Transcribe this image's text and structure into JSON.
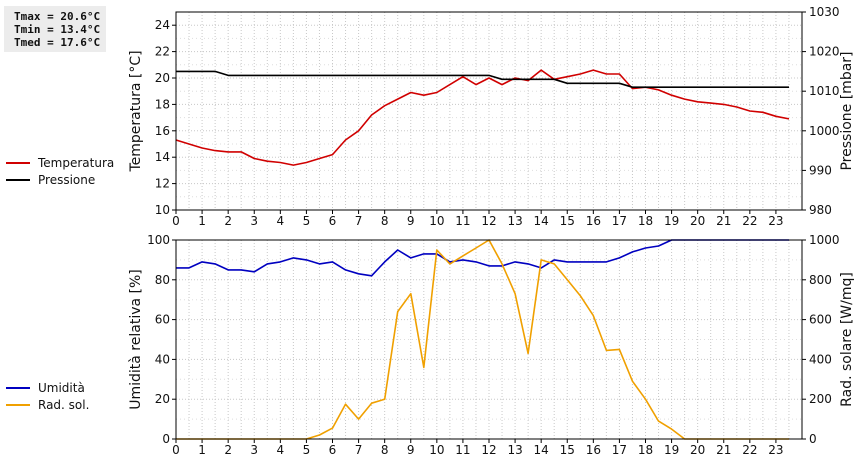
{
  "stats": {
    "tmax": "Tmax = 20.6°C",
    "tmin": "Tmin = 13.4°C",
    "tmed": "Tmed = 17.6°C"
  },
  "chart_data": [
    {
      "type": "line",
      "x_ticks": [
        0,
        1,
        2,
        3,
        4,
        5,
        6,
        7,
        8,
        9,
        10,
        11,
        12,
        13,
        14,
        15,
        16,
        17,
        18,
        19,
        20,
        21,
        22,
        23
      ],
      "xlim": [
        0,
        24
      ],
      "ylabel_left": "Temperatura [°C]",
      "ylim_left": [
        10,
        25
      ],
      "yticks_left": [
        10,
        12,
        14,
        16,
        18,
        20,
        22,
        24
      ],
      "ylabel_right": "Pressione [mbar]",
      "ylim_right": [
        980,
        1030
      ],
      "yticks_right": [
        980,
        990,
        1000,
        1010,
        1020,
        1030
      ],
      "grid": true,
      "legend_position": "left",
      "series": [
        {
          "name": "Temperatura",
          "axis": "left",
          "color": "#d00000",
          "x": [
            0,
            0.5,
            1,
            1.5,
            2,
            2.5,
            3,
            3.5,
            4,
            4.5,
            5,
            5.5,
            6,
            6.5,
            7,
            7.5,
            8,
            8.5,
            9,
            9.5,
            10,
            10.5,
            11,
            11.5,
            12,
            12.5,
            13,
            13.5,
            14,
            14.5,
            15,
            15.5,
            16,
            16.5,
            17,
            17.5,
            18,
            18.5,
            19,
            19.5,
            20,
            20.5,
            21,
            21.5,
            22,
            22.5,
            23,
            23.5
          ],
          "y": [
            15.3,
            15.0,
            14.7,
            14.5,
            14.4,
            14.4,
            13.9,
            13.7,
            13.6,
            13.4,
            13.6,
            13.9,
            14.2,
            15.3,
            16.0,
            17.2,
            17.9,
            18.4,
            18.9,
            18.7,
            18.9,
            19.5,
            20.1,
            19.5,
            20.0,
            19.5,
            20.0,
            19.8,
            20.6,
            19.9,
            20.1,
            20.3,
            20.6,
            20.3,
            20.3,
            19.2,
            19.3,
            19.1,
            18.7,
            18.4,
            18.2,
            18.1,
            18.0,
            17.8,
            17.5,
            17.4,
            17.1,
            16.9
          ]
        },
        {
          "name": "Pressione",
          "axis": "right",
          "color": "#000000",
          "x": [
            0,
            1.5,
            2,
            12,
            12.5,
            14.5,
            15,
            17,
            17.5,
            23.5
          ],
          "y": [
            1015,
            1015,
            1014,
            1014,
            1013,
            1013,
            1012,
            1012,
            1011,
            1011
          ]
        }
      ]
    },
    {
      "type": "line",
      "x_ticks": [
        0,
        1,
        2,
        3,
        4,
        5,
        6,
        7,
        8,
        9,
        10,
        11,
        12,
        13,
        14,
        15,
        16,
        17,
        18,
        19,
        20,
        21,
        22,
        23
      ],
      "xlim": [
        0,
        24
      ],
      "ylabel_left": "Umidità relativa [%]",
      "ylim_left": [
        0,
        100
      ],
      "yticks_left": [
        0,
        20,
        40,
        60,
        80,
        100
      ],
      "ylabel_right": "Rad. solare [W/mq]",
      "ylim_right": [
        0,
        1000
      ],
      "yticks_right": [
        0,
        200,
        400,
        600,
        800,
        1000
      ],
      "grid": true,
      "legend_position": "left",
      "series": [
        {
          "name": "Umidità",
          "axis": "left",
          "color": "#0000c0",
          "x": [
            0,
            0.5,
            1,
            1.5,
            2,
            2.5,
            3,
            3.5,
            4,
            4.5,
            5,
            5.5,
            6,
            6.5,
            7,
            7.5,
            8,
            8.5,
            9,
            9.5,
            10,
            10.5,
            11,
            11.5,
            12,
            12.5,
            13,
            13.5,
            14,
            14.5,
            15,
            15.5,
            16,
            16.5,
            17,
            17.5,
            18,
            18.5,
            19,
            19.5,
            20,
            20.5,
            21,
            21.5,
            22,
            22.5,
            23,
            23.5
          ],
          "y": [
            86,
            86,
            89,
            88,
            85,
            85,
            84,
            88,
            89,
            91,
            90,
            88,
            89,
            85,
            83,
            82,
            89,
            95,
            91,
            93,
            93,
            89,
            90,
            89,
            87,
            87,
            89,
            88,
            86,
            90,
            89,
            89,
            89,
            89,
            91,
            94,
            96,
            97,
            100,
            100,
            100,
            100,
            100,
            100,
            100,
            100,
            100,
            100
          ]
        },
        {
          "name": "Rad. sol.",
          "axis": "right",
          "color": "#f0a000",
          "x": [
            0,
            0.5,
            1,
            1.5,
            2,
            2.5,
            3,
            3.5,
            4,
            4.5,
            5,
            5.5,
            6,
            6.5,
            7,
            7.5,
            8,
            8.5,
            9,
            9.5,
            10,
            10.5,
            11,
            11.5,
            12,
            12.5,
            13,
            13.5,
            14,
            14.5,
            15,
            15.5,
            16,
            16.5,
            17,
            17.5,
            18,
            18.5,
            19,
            19.5,
            20,
            20.5,
            21,
            21.5,
            22,
            22.5,
            23,
            23.5
          ],
          "y": [
            0,
            0,
            0,
            0,
            0,
            0,
            0,
            0,
            0,
            0,
            0,
            20,
            55,
            175,
            100,
            180,
            200,
            640,
            730,
            360,
            950,
            880,
            920,
            960,
            1000,
            880,
            730,
            430,
            900,
            880,
            800,
            720,
            620,
            445,
            450,
            290,
            200,
            90,
            50,
            0,
            0,
            0,
            0,
            0,
            0,
            0,
            0,
            0
          ]
        }
      ]
    }
  ]
}
